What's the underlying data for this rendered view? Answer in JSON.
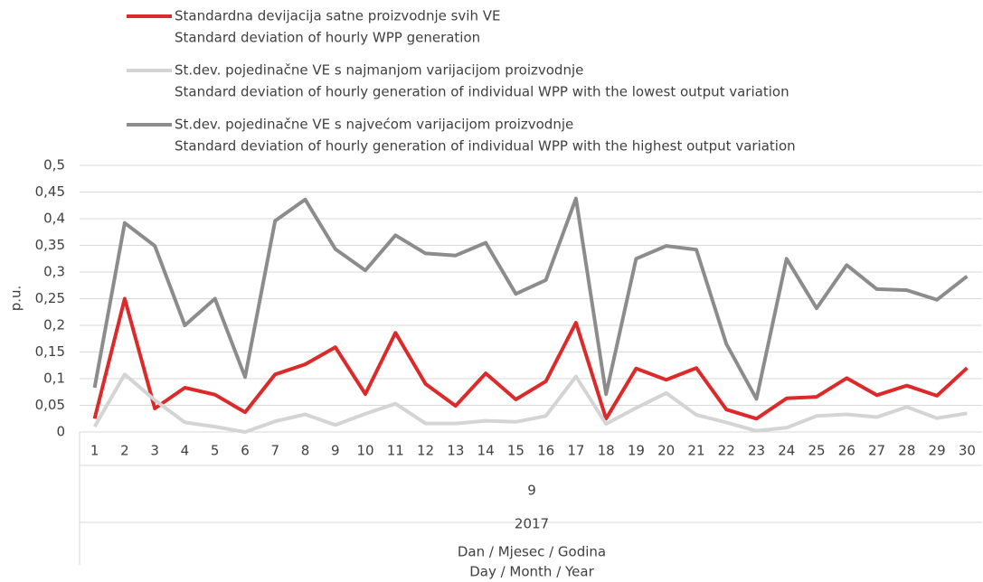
{
  "chart_data": {
    "type": "line",
    "ylabel": "p.u.",
    "xlabel": [
      "Dan / Mjesec / Godina",
      "Day / Month / Year"
    ],
    "categories": [
      "1",
      "2",
      "3",
      "4",
      "5",
      "6",
      "7",
      "8",
      "9",
      "10",
      "11",
      "12",
      "13",
      "14",
      "15",
      "16",
      "17",
      "18",
      "19",
      "20",
      "21",
      "22",
      "23",
      "24",
      "25",
      "26",
      "27",
      "28",
      "29",
      "30"
    ],
    "x_group_labels": [
      "9",
      "2017"
    ],
    "ylim": [
      0,
      0.5
    ],
    "yticks": [
      0,
      {
        "value": 0.05,
        "label": "0,05"
      },
      {
        "value": 0.1,
        "label": "0,1"
      },
      {
        "value": 0.15,
        "label": "0,15"
      },
      {
        "value": 0.2,
        "label": "0,2"
      },
      {
        "value": 0.25,
        "label": "0,25"
      },
      {
        "value": 0.3,
        "label": "0,3"
      },
      {
        "value": 0.35,
        "label": "0,35"
      },
      {
        "value": 0.4,
        "label": "0,4"
      },
      {
        "value": 0.45,
        "label": "0,45"
      },
      {
        "value": 0.5,
        "label": "0,5"
      }
    ],
    "grid": true,
    "legend": "top",
    "series": [
      {
        "name": "Standardna devijacija satne proizvodnje svih VE",
        "name_en": "Standard deviation of hourly WPP generation",
        "color": "#dc2a2a",
        "values": [
          0.025,
          0.25,
          0.044,
          0.083,
          0.07,
          0.037,
          0.108,
          0.127,
          0.159,
          0.071,
          0.186,
          0.09,
          0.049,
          0.11,
          0.061,
          0.095,
          0.205,
          0.025,
          0.119,
          0.098,
          0.12,
          0.042,
          0.025,
          0.063,
          0.066,
          0.101,
          0.069,
          0.087,
          0.068,
          0.12
        ]
      },
      {
        "name": "St.dev. pojedinačne VE s najmanjom varijacijom proizvodnje",
        "name_en": "Standard deviation of hourly generation of individual WPP with the lowest output variation",
        "color": "#d4d4d4",
        "values": [
          0.01,
          0.108,
          0.06,
          0.018,
          0.01,
          0,
          0.02,
          0.033,
          0.013,
          0.034,
          0.053,
          0.016,
          0.016,
          0.021,
          0.019,
          0.03,
          0.104,
          0.015,
          0.045,
          0.073,
          0.032,
          0.018,
          0.002,
          0.008,
          0.03,
          0.033,
          0.028,
          0.047,
          0.026,
          0.035
        ]
      },
      {
        "name": "St.dev. pojedinačne VE s najvećom varijacijom proizvodnje",
        "name_en": "Standard deviation of hourly generation of individual WPP with the highest output variation",
        "color": "#8c8c8c",
        "values": [
          0.083,
          0.392,
          0.349,
          0.2,
          0.25,
          0.103,
          0.396,
          0.436,
          0.343,
          0.303,
          0.369,
          0.335,
          0.331,
          0.355,
          0.259,
          0.285,
          0.438,
          0.071,
          0.325,
          0.349,
          0.342,
          0.165,
          0.062,
          0.325,
          0.232,
          0.313,
          0.268,
          0.266,
          0.248,
          0.292
        ]
      }
    ]
  }
}
